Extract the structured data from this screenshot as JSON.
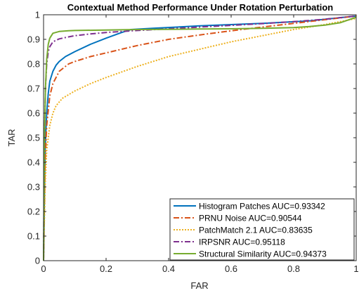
{
  "chart_data": {
    "type": "line",
    "title": "Contextual Method Performance Under Rotation Perturbation",
    "xlabel": "FAR",
    "ylabel": "TAR",
    "xlim": [
      0,
      1
    ],
    "ylim": [
      0,
      1
    ],
    "xticks": [
      0,
      0.2,
      0.4,
      0.6,
      0.8,
      1
    ],
    "xtick_labels": [
      "0",
      "0.2",
      "0.4",
      "0.6",
      "0.8",
      "1"
    ],
    "yticks": [
      0,
      0.1,
      0.2,
      0.3,
      0.4,
      0.5,
      0.6,
      0.7,
      0.8,
      0.9,
      1
    ],
    "ytick_labels": [
      "0",
      "0.1",
      "0.2",
      "0.3",
      "0.4",
      "0.5",
      "0.6",
      "0.7",
      "0.8",
      "0.9",
      "1"
    ],
    "grid": false,
    "legend_position": "bottom-right",
    "series": [
      {
        "name": "Histogram Patches AUC=0.93342",
        "color": "#0072BD",
        "style": "solid",
        "x": [
          0,
          0.005,
          0.01,
          0.015,
          0.02,
          0.03,
          0.04,
          0.05,
          0.07,
          0.1,
          0.15,
          0.2,
          0.25,
          0.28,
          0.35,
          0.5,
          0.7,
          0.85,
          1.0
        ],
        "y": [
          0,
          0.45,
          0.6,
          0.68,
          0.73,
          0.77,
          0.795,
          0.81,
          0.83,
          0.85,
          0.88,
          0.905,
          0.928,
          0.94,
          0.945,
          0.955,
          0.965,
          0.975,
          0.995
        ]
      },
      {
        "name": "PRNU Noise AUC=0.90544",
        "color": "#D95319",
        "style": "dashdot",
        "x": [
          0,
          0.005,
          0.01,
          0.02,
          0.03,
          0.05,
          0.08,
          0.1,
          0.15,
          0.2,
          0.25,
          0.3,
          0.4,
          0.5,
          0.6,
          0.7,
          0.8,
          0.9,
          1.0
        ],
        "y": [
          0,
          0.4,
          0.55,
          0.67,
          0.72,
          0.77,
          0.8,
          0.81,
          0.83,
          0.845,
          0.86,
          0.875,
          0.9,
          0.918,
          0.935,
          0.95,
          0.965,
          0.98,
          0.995
        ]
      },
      {
        "name": "PatchMatch 2.1 AUC=0.83635",
        "color": "#EDB120",
        "style": "dotted",
        "x": [
          0,
          0.005,
          0.01,
          0.02,
          0.03,
          0.04,
          0.06,
          0.1,
          0.15,
          0.2,
          0.3,
          0.4,
          0.5,
          0.6,
          0.7,
          0.8,
          0.9,
          1.0
        ],
        "y": [
          0,
          0.3,
          0.45,
          0.55,
          0.6,
          0.63,
          0.66,
          0.69,
          0.72,
          0.745,
          0.79,
          0.83,
          0.86,
          0.89,
          0.915,
          0.94,
          0.96,
          0.985
        ]
      },
      {
        "name": "IRPSNR AUC=0.95118",
        "color": "#7E2F8E",
        "style": "dashdot",
        "x": [
          0,
          0.003,
          0.006,
          0.01,
          0.015,
          0.02,
          0.03,
          0.05,
          0.08,
          0.1,
          0.15,
          0.2,
          0.25,
          0.3,
          0.4,
          0.5,
          0.6,
          0.7,
          0.8,
          0.9,
          1.0
        ],
        "y": [
          0,
          0.5,
          0.7,
          0.8,
          0.85,
          0.87,
          0.89,
          0.902,
          0.91,
          0.915,
          0.922,
          0.928,
          0.932,
          0.936,
          0.943,
          0.95,
          0.957,
          0.964,
          0.972,
          0.982,
          0.995
        ]
      },
      {
        "name": "Structural Similarity AUC=0.94373",
        "color": "#77AC30",
        "style": "solid",
        "x": [
          0,
          0.003,
          0.006,
          0.01,
          0.015,
          0.02,
          0.03,
          0.05,
          0.08,
          0.1,
          0.2,
          0.3,
          0.4,
          0.5,
          0.6,
          0.7,
          0.8,
          0.85,
          0.9,
          0.95,
          1.0
        ],
        "y": [
          0,
          0.5,
          0.7,
          0.82,
          0.88,
          0.905,
          0.925,
          0.932,
          0.935,
          0.936,
          0.938,
          0.94,
          0.941,
          0.942,
          0.943,
          0.945,
          0.948,
          0.952,
          0.958,
          0.968,
          0.99
        ]
      }
    ]
  }
}
